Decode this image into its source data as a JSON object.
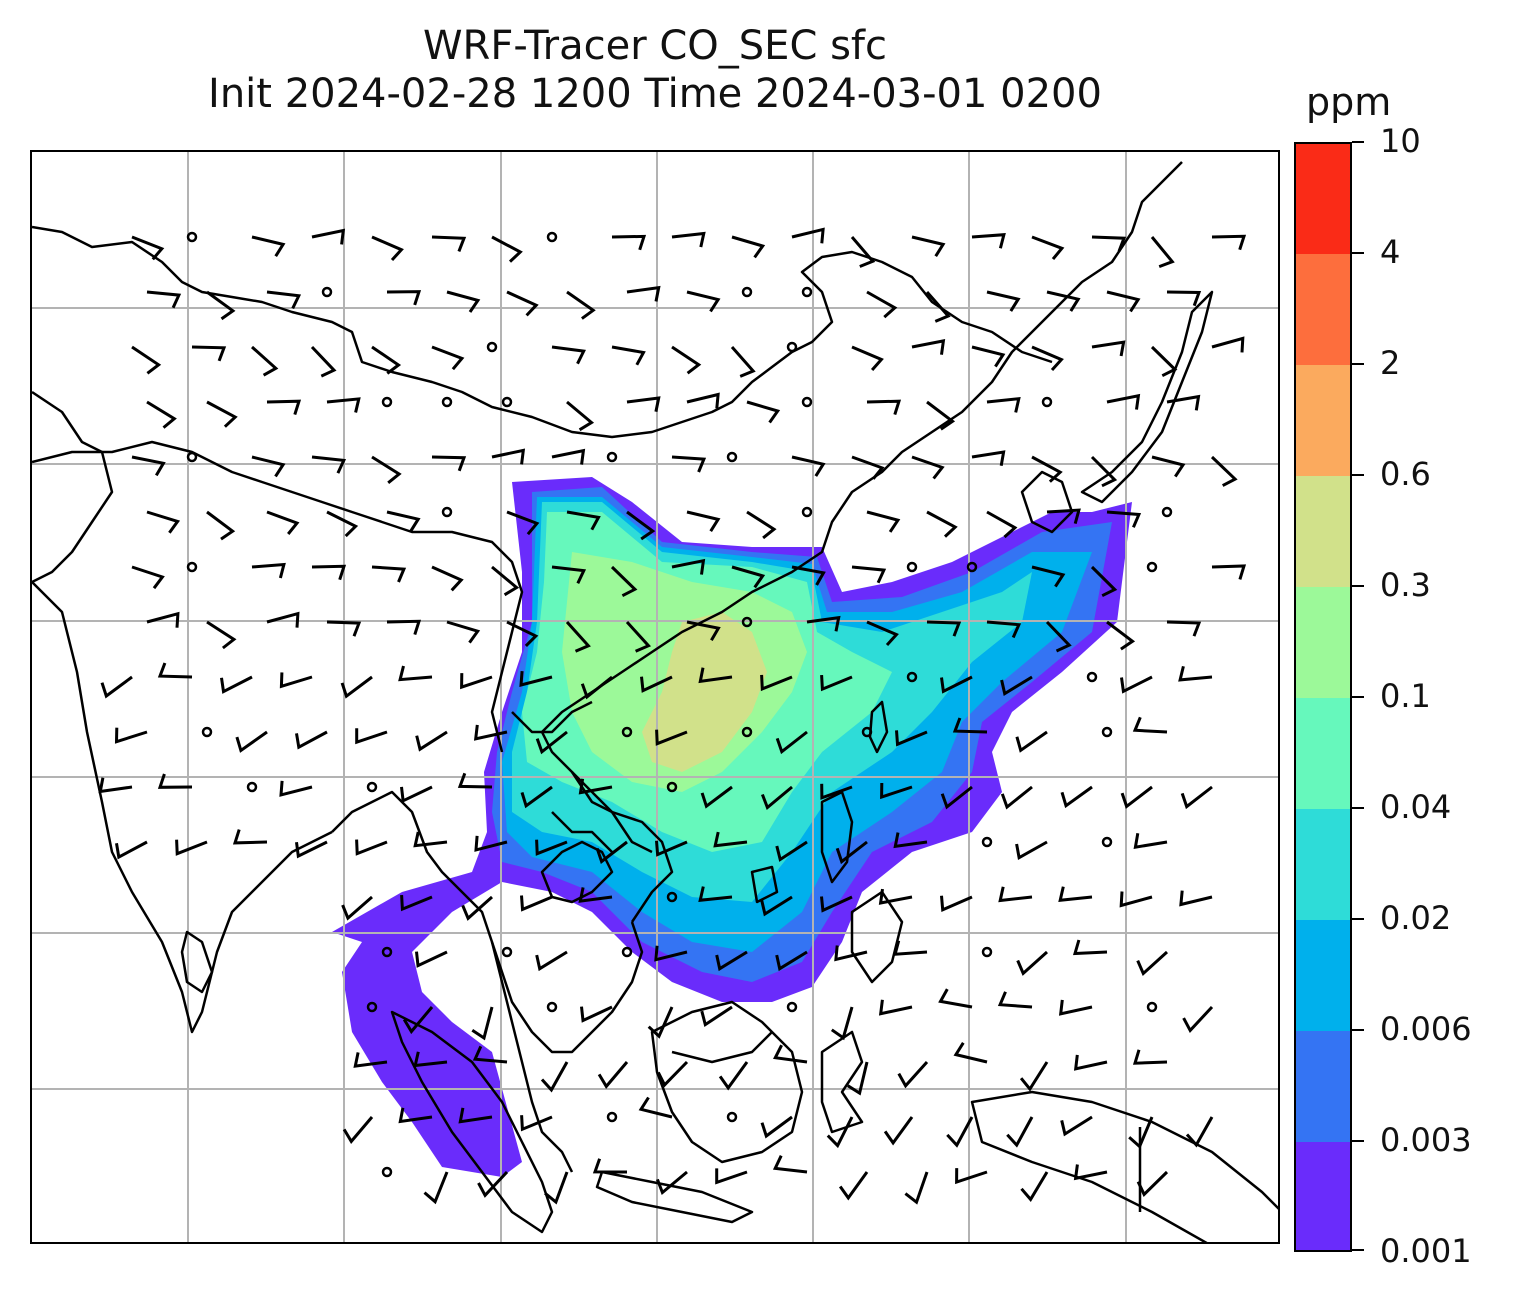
{
  "title": {
    "line1": "WRF-Tracer CO_SEC sfc",
    "line2": "Init 2024-02-28 1200 Time 2024-03-01 0200"
  },
  "colorbar": {
    "unit": "ppm",
    "levels": [
      {
        "label": "0.001",
        "color": "#6a2cfb"
      },
      {
        "label": "0.003",
        "color": "#3474f3"
      },
      {
        "label": "0.006",
        "color": "#00b0ec"
      },
      {
        "label": "0.02",
        "color": "#2edcd8"
      },
      {
        "label": "0.04",
        "color": "#66f8bc"
      },
      {
        "label": "0.1",
        "color": "#9cf999"
      },
      {
        "label": "0.3",
        "color": "#d1e18a"
      },
      {
        "label": "0.6",
        "color": "#fbaa5e"
      },
      {
        "label": "2",
        "color": "#fd6e3d"
      },
      {
        "label": "4",
        "color": "#fa2b17"
      },
      {
        "label": "10",
        "color": null
      }
    ]
  },
  "map": {
    "gridlines": true,
    "coastline_color": "#000000",
    "grid_color": "#b3b3b3",
    "layers": [
      "co-sec-concentration-field",
      "coastlines",
      "country-borders",
      "wind-barbs"
    ]
  }
}
